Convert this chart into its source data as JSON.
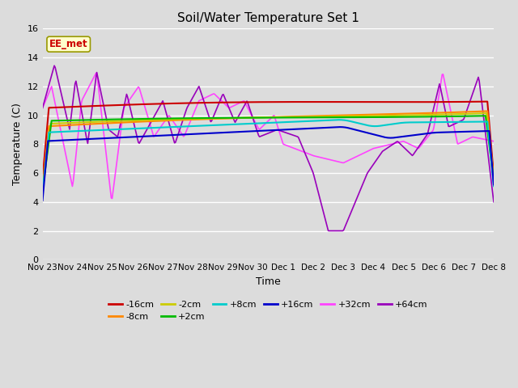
{
  "title": "Soil/Water Temperature Set 1",
  "xlabel": "Time",
  "ylabel": "Temperature (C)",
  "ylim": [
    0,
    16
  ],
  "yticks": [
    0,
    2,
    4,
    6,
    8,
    10,
    12,
    14,
    16
  ],
  "background_color": "#dcdcdc",
  "series_colors": {
    "-16cm": "#cc0000",
    "-8cm": "#ff8800",
    "-2cm": "#cccc00",
    "+2cm": "#00bb00",
    "+8cm": "#00cccc",
    "+16cm": "#0000cc",
    "+32cm": "#ff44ff",
    "+64cm": "#9900bb"
  },
  "annotation_text": "EE_met",
  "annotation_bg": "#ffffcc",
  "annotation_border": "#999900",
  "annotation_text_color": "#cc0000",
  "date_labels": [
    "Nov 23",
    "Nov 24",
    "Nov 25",
    "Nov 26",
    "Nov 27",
    "Nov 28",
    "Nov 29",
    "Nov 30",
    "Dec 1",
    "Dec 2",
    "Dec 3",
    "Dec 4",
    "Dec 5",
    "Dec 6",
    "Dec 7",
    "Dec 8"
  ]
}
